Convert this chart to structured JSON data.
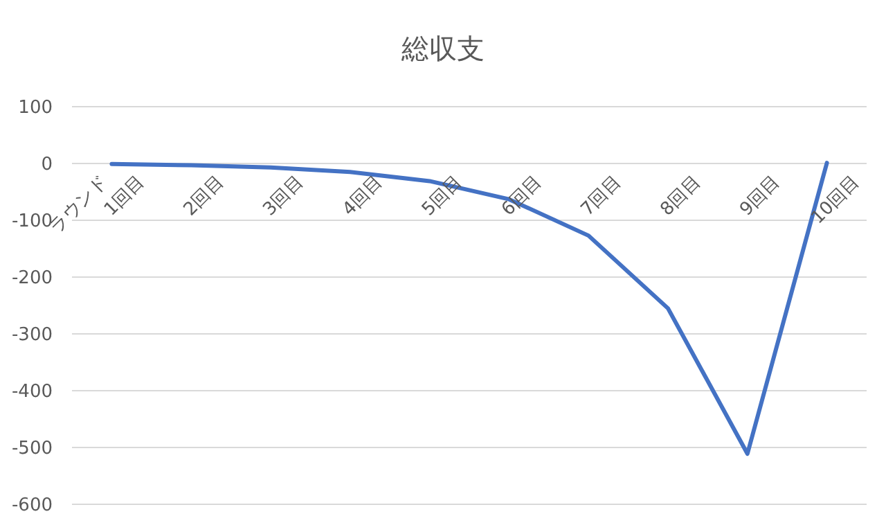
{
  "chart_data": {
    "type": "line",
    "title": "総収支",
    "xlabel": "ラウンド",
    "categories": [
      "1回目",
      "2回目",
      "3回目",
      "4回目",
      "5回目",
      "6回目",
      "7回目",
      "8回目",
      "9回目",
      "10回目"
    ],
    "series": [
      {
        "color": "#4472c4",
        "values": [
          -1,
          -3,
          -7,
          -15,
          -31,
          -63,
          -127,
          -255,
          -511,
          1
        ]
      }
    ],
    "ylim": [
      -600,
      100
    ],
    "yticks": [
      -600,
      -500,
      -400,
      -300,
      -200,
      -100,
      0,
      100
    ],
    "grid": "y",
    "marker": "none",
    "line_style": "solid"
  }
}
